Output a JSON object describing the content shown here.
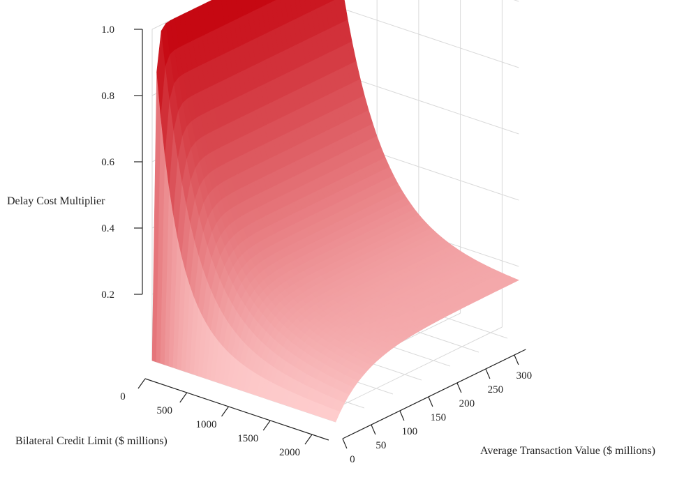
{
  "chart_data": {
    "type": "surface",
    "zlabel": "Delay Cost Multiplier",
    "xlabel": "Bilateral Credit Limit ($ millions)",
    "ylabel": "Average Transaction Value ($ millions)",
    "zlim": [
      0,
      1.0
    ],
    "xlim": [
      0,
      2200
    ],
    "ylim": [
      0,
      320
    ],
    "z_ticks": [
      {
        "value": 0.2,
        "label": "0.2"
      },
      {
        "value": 0.4,
        "label": "0.4"
      },
      {
        "value": 0.6,
        "label": "0.6"
      },
      {
        "value": 0.8,
        "label": "0.8"
      },
      {
        "value": 1.0,
        "label": "1.0"
      }
    ],
    "x_ticks": [
      {
        "value": 0,
        "label": "0"
      },
      {
        "value": 500,
        "label": "500"
      },
      {
        "value": 1000,
        "label": "1000"
      },
      {
        "value": 1500,
        "label": "1500"
      },
      {
        "value": 2000,
        "label": "2000"
      }
    ],
    "y_ticks": [
      {
        "value": 0,
        "label": "0"
      },
      {
        "value": 50,
        "label": "50"
      },
      {
        "value": 100,
        "label": "100"
      },
      {
        "value": 150,
        "label": "150"
      },
      {
        "value": 200,
        "label": "200"
      },
      {
        "value": 250,
        "label": "250"
      },
      {
        "value": 300,
        "label": "300"
      }
    ],
    "surface": {
      "description_formula": "z = min(1, avg_transaction_value / bilateral_credit_limit) approximately",
      "corner_values": [
        {
          "x": 0,
          "y": 0,
          "z": 0.0
        },
        {
          "x": 0,
          "y": 320,
          "z": 1.0
        },
        {
          "x": 2200,
          "y": 320,
          "z": 0.15
        },
        {
          "x": 2200,
          "y": 0,
          "z": 0.0
        }
      ]
    },
    "colors": {
      "high": "#c4000b",
      "low": "#ffd0d0",
      "grid": "#d9d9d9",
      "axis": "#222222"
    },
    "grid": true
  }
}
